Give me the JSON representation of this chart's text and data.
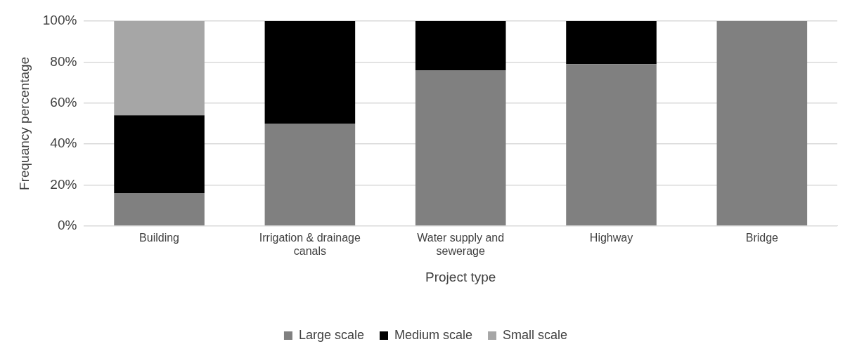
{
  "chart_data": {
    "type": "bar",
    "stacked": true,
    "xlabel": "Project type",
    "ylabel": "Frequancy percentage",
    "categories": [
      "Building",
      "Irrigation & drainage canals",
      "Water supply and sewerage",
      "Highway",
      "Bridge"
    ],
    "series": [
      {
        "name": "Large scale",
        "color": "#808080",
        "values": [
          16,
          50,
          76,
          79,
          100
        ]
      },
      {
        "name": "Medium scale",
        "color": "#000000",
        "values": [
          38,
          50,
          24,
          21,
          0
        ]
      },
      {
        "name": "Small scale",
        "color": "#a6a6a6",
        "values": [
          46,
          0,
          0,
          0,
          0
        ]
      }
    ],
    "ylim": [
      0,
      100
    ],
    "yticks": [
      {
        "value": 0,
        "label": "0%"
      },
      {
        "value": 20,
        "label": "20%"
      },
      {
        "value": 40,
        "label": "40%"
      },
      {
        "value": 60,
        "label": "60%"
      },
      {
        "value": 80,
        "label": "80%"
      },
      {
        "value": 100,
        "label": "100%"
      }
    ],
    "grid": "y",
    "legend": "bottom"
  }
}
